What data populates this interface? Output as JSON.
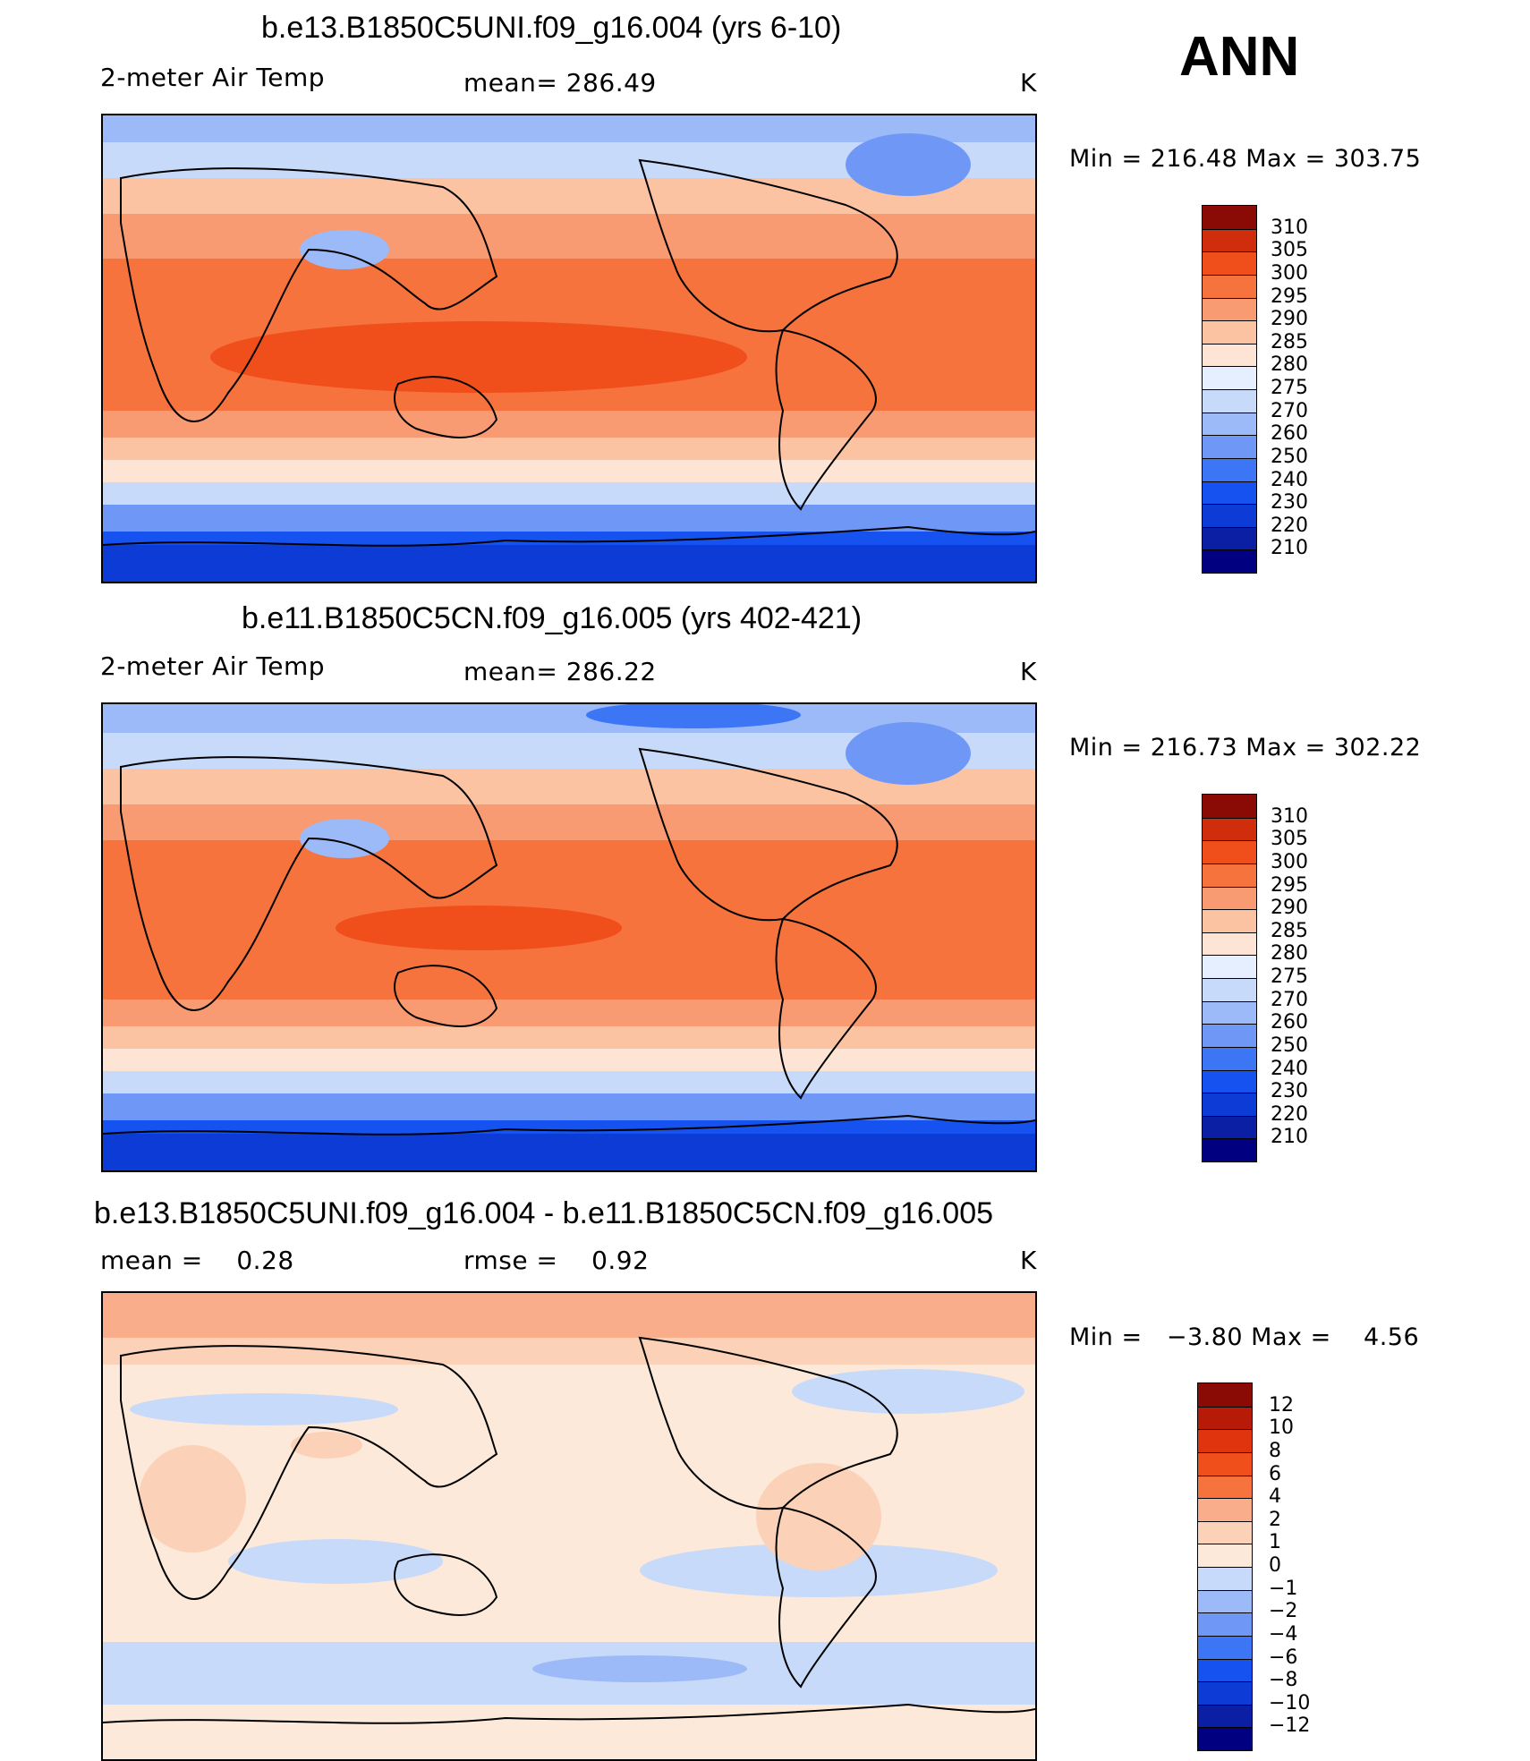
{
  "season": "ANN",
  "units": "K",
  "chart_data": [
    {
      "type": "heatmap",
      "title": "b.e13.B1850C5UNI.f09_g16.004 (yrs 6-10)",
      "variable": "2-meter Air Temp",
      "stat_left": "",
      "stat_mid": "mean= 286.49",
      "units": "K",
      "min_max": "Min = 216.48 Max = 303.75",
      "mean": 286.49,
      "min": 216.48,
      "max": 303.75,
      "colorbar_levels": [
        "210",
        "220",
        "230",
        "240",
        "250",
        "260",
        "270",
        "275",
        "280",
        "285",
        "290",
        "295",
        "300",
        "305",
        "310"
      ],
      "colorbar_colors": [
        "#000080",
        "#0a1fa3",
        "#0d3bd6",
        "#1552ef",
        "#3d76f5",
        "#6f98f6",
        "#9dbaf8",
        "#c8daf9",
        "#e6efff",
        "#fde4d4",
        "#fbc3a2",
        "#f89a72",
        "#f6733e",
        "#f04e1a",
        "#cf2d0c",
        "#8a0a05"
      ]
    },
    {
      "type": "heatmap",
      "title": "b.e11.B1850C5CN.f09_g16.005 (yrs 402-421)",
      "variable": "2-meter Air Temp",
      "stat_left": "",
      "stat_mid": "mean= 286.22",
      "units": "K",
      "min_max": "Min = 216.73 Max = 302.22",
      "mean": 286.22,
      "min": 216.73,
      "max": 302.22,
      "colorbar_levels": [
        "210",
        "220",
        "230",
        "240",
        "250",
        "260",
        "270",
        "275",
        "280",
        "285",
        "290",
        "295",
        "300",
        "305",
        "310"
      ],
      "colorbar_colors": [
        "#000080",
        "#0a1fa3",
        "#0d3bd6",
        "#1552ef",
        "#3d76f5",
        "#6f98f6",
        "#9dbaf8",
        "#c8daf9",
        "#e6efff",
        "#fde4d4",
        "#fbc3a2",
        "#f89a72",
        "#f6733e",
        "#f04e1a",
        "#cf2d0c",
        "#8a0a05"
      ]
    },
    {
      "type": "heatmap",
      "title": "b.e13.B1850C5UNI.f09_g16.004 - b.e11.B1850C5CN.f09_g16.005",
      "variable": "",
      "stat_left": "mean =    0.28",
      "stat_mid": "rmse =    0.92",
      "units": "K",
      "min_max": "Min =   −3.80 Max =    4.56",
      "mean": 0.28,
      "rmse": 0.92,
      "min": -3.8,
      "max": 4.56,
      "colorbar_levels": [
        "−12",
        "−10",
        "−8",
        "−6",
        "−4",
        "−2",
        "−1",
        "0",
        "1",
        "2",
        "4",
        "6",
        "8",
        "10",
        "12"
      ],
      "colorbar_colors": [
        "#000080",
        "#0a1fa3",
        "#0d3bd6",
        "#1552ef",
        "#3d76f5",
        "#6f98f6",
        "#9dbaf8",
        "#c8daf9",
        "#fde9d9",
        "#fbd2b8",
        "#f9ad8a",
        "#f6733e",
        "#f04e1a",
        "#e0340f",
        "#b81a08",
        "#8a0a05"
      ]
    }
  ]
}
